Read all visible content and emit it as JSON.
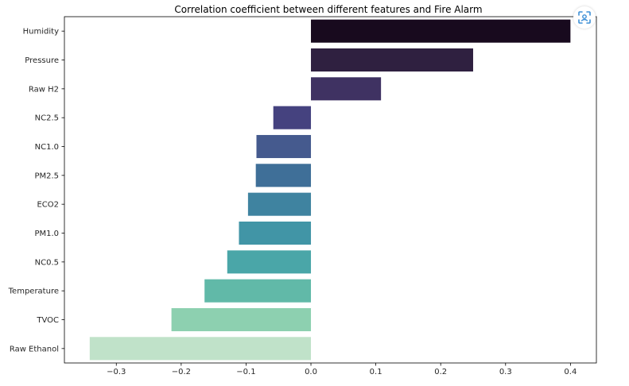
{
  "chart_data": {
    "type": "bar",
    "orientation": "horizontal",
    "title": "Correlation coefficient between different features and Fire Alarm",
    "xlabel": "",
    "ylabel": "",
    "categories": [
      "Humidity",
      "Pressure",
      "Raw H2",
      "NC2.5",
      "NC1.0",
      "PM2.5",
      "ECO2",
      "PM1.0",
      "NC0.5",
      "Temperature",
      "TVOC",
      "Raw Ethanol"
    ],
    "values": [
      0.4,
      0.25,
      0.108,
      -0.058,
      -0.084,
      -0.085,
      -0.097,
      -0.111,
      -0.129,
      -0.164,
      -0.215,
      -0.341
    ],
    "colors": [
      "#180a1e",
      "#2f2040",
      "#3f3262",
      "#45427f",
      "#455a8e",
      "#3f6f98",
      "#3f83a0",
      "#4195a6",
      "#4aa6a8",
      "#61b9a8",
      "#8dd0b0",
      "#c0e2c9"
    ],
    "xlim": [
      -0.38,
      0.44
    ],
    "xticks": [
      -0.3,
      -0.2,
      -0.1,
      0.0,
      0.1,
      0.2,
      0.3,
      0.4
    ],
    "xtick_labels": [
      "−0.3",
      "−0.2",
      "−0.1",
      "0.0",
      "0.1",
      "0.2",
      "0.3",
      "0.4"
    ],
    "grid": false,
    "legend": "none"
  },
  "toolbar": {
    "scan_icon": "scan-icon"
  }
}
